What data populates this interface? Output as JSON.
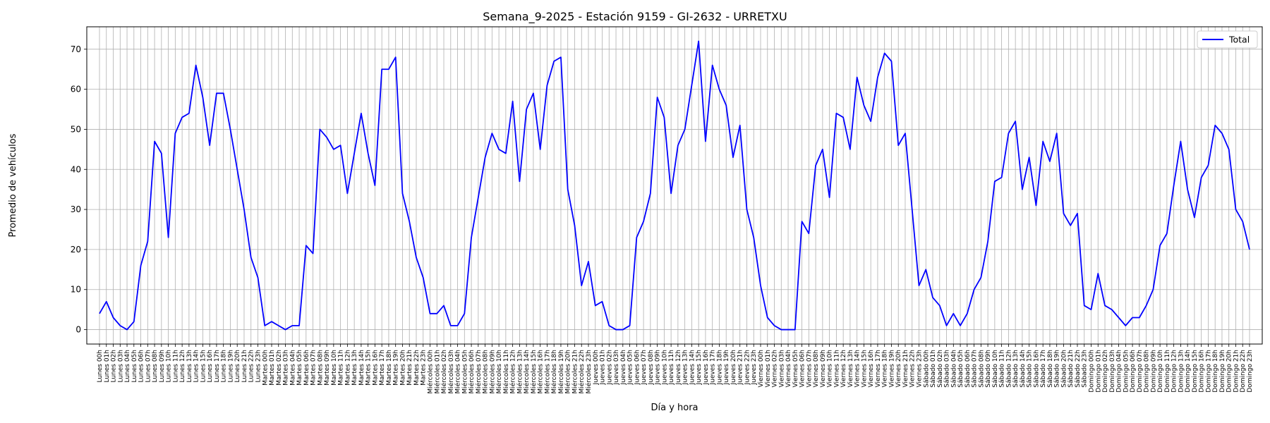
{
  "chart_data": {
    "type": "line",
    "title": "Semana_9-2025 - Estación 9159 - GI-2632  - URRETXU",
    "xlabel": "Día y hora",
    "ylabel": "Promedio de vehículos",
    "ylim": [
      -3.6,
      75.6
    ],
    "yticks": [
      0,
      10,
      20,
      30,
      40,
      50,
      60,
      70
    ],
    "grid": true,
    "legend_position": "top-right",
    "line_color": "#0000ff",
    "days": [
      "Lunes",
      "Martes",
      "Miércoles",
      "Jueves",
      "Viernes",
      "Sábado",
      "Domingo"
    ],
    "hours": [
      "00h",
      "01h",
      "02h",
      "03h",
      "04h",
      "05h",
      "06h",
      "07h",
      "08h",
      "09h",
      "10h",
      "11h",
      "12h",
      "13h",
      "14h",
      "15h",
      "16h",
      "17h",
      "18h",
      "19h",
      "20h",
      "21h",
      "22h",
      "23h"
    ],
    "series": [
      {
        "name": "Total",
        "values": [
          4,
          7,
          3,
          1,
          0,
          2,
          16,
          22,
          47,
          44,
          23,
          49,
          53,
          54,
          66,
          58,
          46,
          59,
          59,
          50,
          40,
          30,
          18,
          13,
          1,
          2,
          1,
          0,
          1,
          1,
          21,
          19,
          50,
          48,
          45,
          46,
          34,
          44,
          54,
          44,
          36,
          65,
          65,
          68,
          34,
          27,
          18,
          13,
          4,
          4,
          6,
          1,
          1,
          4,
          23,
          33,
          43,
          49,
          45,
          44,
          57,
          37,
          55,
          59,
          45,
          61,
          67,
          68,
          35,
          26,
          11,
          17,
          6,
          7,
          1,
          0,
          0,
          1,
          23,
          27,
          34,
          58,
          53,
          34,
          46,
          50,
          61,
          72,
          47,
          66,
          60,
          56,
          43,
          51,
          30,
          23,
          11,
          3,
          1,
          0,
          0,
          0,
          27,
          24,
          41,
          45,
          33,
          54,
          53,
          45,
          63,
          56,
          52,
          63,
          69,
          67,
          46,
          49,
          30,
          11,
          15,
          8,
          6,
          1,
          4,
          1,
          4,
          10,
          13,
          22,
          37,
          38,
          49,
          52,
          35,
          43,
          31,
          47,
          42,
          49,
          29,
          26,
          29,
          6,
          5,
          14,
          6,
          5,
          3,
          1,
          3,
          3,
          6,
          10,
          21,
          24,
          36,
          47,
          35,
          28,
          38,
          41,
          51,
          49,
          45,
          30,
          27,
          20
        ]
      }
    ]
  }
}
